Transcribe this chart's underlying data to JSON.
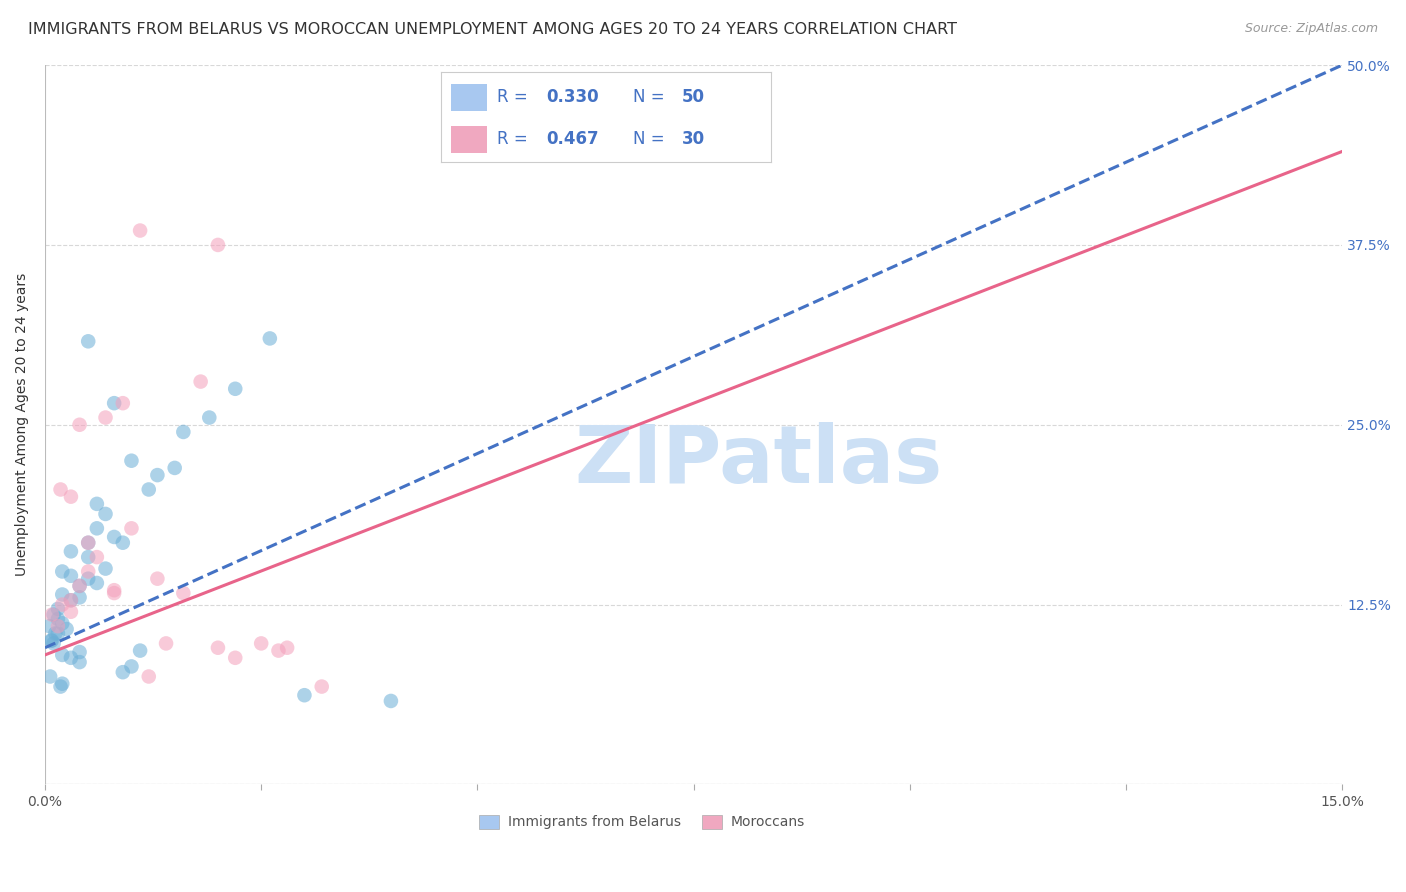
{
  "title": "IMMIGRANTS FROM BELARUS VS MOROCCAN UNEMPLOYMENT AMONG AGES 20 TO 24 YEARS CORRELATION CHART",
  "source": "Source: ZipAtlas.com",
  "ylabel": "Unemployment Among Ages 20 to 24 years",
  "xmin": 0.0,
  "xmax": 0.15,
  "ymin": 0.0,
  "ymax": 0.5,
  "xticks": [
    0.0,
    0.025,
    0.05,
    0.075,
    0.1,
    0.125,
    0.15
  ],
  "xticklabels": [
    "0.0%",
    "",
    "",
    "",
    "",
    "",
    "15.0%"
  ],
  "yticks": [
    0.0,
    0.125,
    0.25,
    0.375,
    0.5
  ],
  "yticklabels_right": [
    "",
    "12.5%",
    "25.0%",
    "37.5%",
    "50.0%"
  ],
  "belarus_scatter_x": [
    0.0005,
    0.001,
    0.0015,
    0.002,
    0.0025,
    0.003,
    0.001,
    0.002,
    0.0008,
    0.0012,
    0.004,
    0.003,
    0.005,
    0.004,
    0.002,
    0.006,
    0.005,
    0.007,
    0.003,
    0.0015,
    0.008,
    0.006,
    0.009,
    0.007,
    0.004,
    0.011,
    0.009,
    0.002,
    0.01,
    0.005,
    0.012,
    0.006,
    0.013,
    0.015,
    0.01,
    0.0007,
    0.0015,
    0.002,
    0.003,
    0.004,
    0.016,
    0.008,
    0.019,
    0.022,
    0.005,
    0.0006,
    0.0018,
    0.03,
    0.04,
    0.026
  ],
  "belarus_scatter_y": [
    0.11,
    0.118,
    0.122,
    0.132,
    0.108,
    0.128,
    0.098,
    0.112,
    0.1,
    0.105,
    0.138,
    0.145,
    0.143,
    0.13,
    0.148,
    0.14,
    0.158,
    0.15,
    0.162,
    0.115,
    0.172,
    0.178,
    0.168,
    0.188,
    0.092,
    0.093,
    0.078,
    0.07,
    0.082,
    0.168,
    0.205,
    0.195,
    0.215,
    0.22,
    0.225,
    0.1,
    0.105,
    0.09,
    0.088,
    0.085,
    0.245,
    0.265,
    0.255,
    0.275,
    0.308,
    0.075,
    0.068,
    0.062,
    0.058,
    0.31
  ],
  "moroccan_scatter_x": [
    0.0008,
    0.0015,
    0.002,
    0.0018,
    0.003,
    0.004,
    0.003,
    0.005,
    0.003,
    0.006,
    0.007,
    0.005,
    0.008,
    0.004,
    0.009,
    0.011,
    0.013,
    0.01,
    0.014,
    0.016,
    0.018,
    0.022,
    0.027,
    0.02,
    0.032,
    0.012,
    0.025,
    0.028,
    0.008,
    0.02
  ],
  "moroccan_scatter_y": [
    0.118,
    0.11,
    0.125,
    0.205,
    0.128,
    0.138,
    0.2,
    0.148,
    0.12,
    0.158,
    0.255,
    0.168,
    0.133,
    0.25,
    0.265,
    0.385,
    0.143,
    0.178,
    0.098,
    0.133,
    0.28,
    0.088,
    0.093,
    0.375,
    0.068,
    0.075,
    0.098,
    0.095,
    0.135,
    0.095
  ],
  "belarus_line_x": [
    0.0,
    0.15
  ],
  "belarus_line_y": [
    0.095,
    0.5
  ],
  "moroccan_line_x": [
    0.0,
    0.15
  ],
  "moroccan_line_y": [
    0.09,
    0.44
  ],
  "scatter_alpha": 0.55,
  "scatter_size": 110,
  "belarus_color": "#6baed6",
  "moroccan_color": "#f4a0bb",
  "belarus_line_color": "#4472c4",
  "moroccan_line_color": "#e8648a",
  "watermark": "ZIPatlas",
  "watermark_color": "#cce0f5",
  "grid_color": "#d8d8d8",
  "background_color": "#ffffff",
  "title_fontsize": 11.5,
  "source_fontsize": 9,
  "axis_label_fontsize": 10,
  "tick_fontsize": 10,
  "legend_fontsize": 12,
  "legend_text_color": "#4472c4",
  "legend_label_color": "#333333",
  "legend_blue_patch": "#a8c8f0",
  "legend_pink_patch": "#f0a8c0",
  "bottom_legend_label_color": "#555555"
}
